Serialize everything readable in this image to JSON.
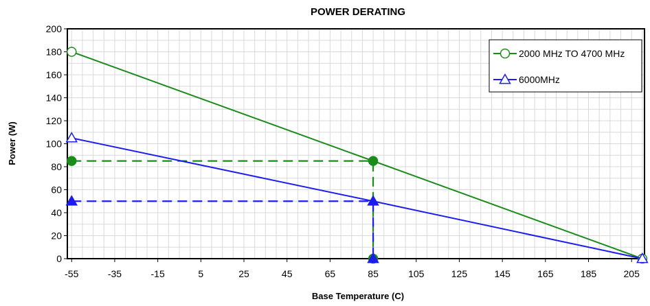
{
  "chart_data": {
    "type": "line",
    "title": "POWER DERATING",
    "xlabel": "Base Temperature (C)",
    "ylabel": "Power (W)",
    "xlim": [
      -57,
      211
    ],
    "ylim": [
      0,
      200
    ],
    "x_ticks": [
      -55,
      -35,
      -15,
      5,
      25,
      45,
      65,
      85,
      105,
      125,
      145,
      165,
      185,
      205
    ],
    "y_ticks": [
      0,
      20,
      40,
      60,
      80,
      100,
      120,
      140,
      160,
      180,
      200
    ],
    "grid": true,
    "legend_position": "top-right",
    "series": [
      {
        "name": "2000 MHz TO 4700 MHz",
        "color": "#1a8c1a",
        "marker": "circle",
        "points": [
          [
            -55,
            180
          ],
          [
            85,
            85
          ],
          [
            210,
            0
          ]
        ]
      },
      {
        "name": "6000MHz",
        "color": "#1c1cf0",
        "marker": "triangle",
        "points": [
          [
            -55,
            105
          ],
          [
            85,
            50
          ],
          [
            210,
            0
          ]
        ]
      }
    ],
    "annotations": [
      {
        "type": "dashed-guide",
        "color": "#1a8c1a",
        "marker": "circle",
        "points": [
          [
            -55,
            85
          ],
          [
            85,
            85
          ],
          [
            85,
            0
          ]
        ]
      },
      {
        "type": "dashed-guide",
        "color": "#1c1cf0",
        "marker": "triangle",
        "points": [
          [
            -55,
            50
          ],
          [
            85,
            50
          ],
          [
            85,
            0
          ]
        ]
      }
    ]
  }
}
